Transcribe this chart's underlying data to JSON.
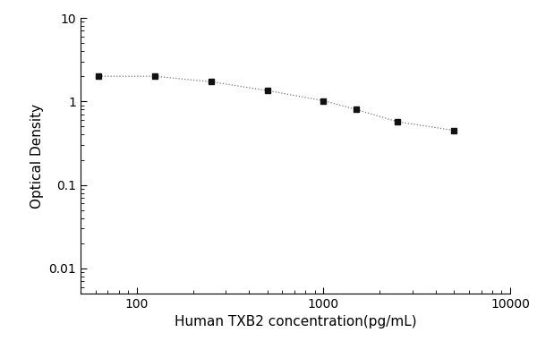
{
  "x": [
    62.5,
    125,
    250,
    500,
    1000,
    1500,
    2500,
    5000
  ],
  "y": [
    2.0,
    2.0,
    1.72,
    1.35,
    1.02,
    0.8,
    0.57,
    0.45
  ],
  "xlabel": "Human TXB2 concentration(pg/mL)",
  "ylabel": "Optical Density",
  "xlim": [
    50,
    10000
  ],
  "ylim": [
    0.005,
    10
  ],
  "line_color": "#777777",
  "marker_color": "#111111",
  "marker": "s",
  "marker_size": 5,
  "linestyle": "dotted",
  "background_color": "#ffffff",
  "xlabel_fontsize": 11,
  "ylabel_fontsize": 11,
  "yticks": [
    0.01,
    0.1,
    1,
    10
  ],
  "ytick_labels": [
    "0.01",
    "0.1",
    "1",
    "10"
  ],
  "xticks": [
    100,
    1000,
    10000
  ],
  "xtick_labels": [
    "100",
    "1000",
    "10000"
  ]
}
